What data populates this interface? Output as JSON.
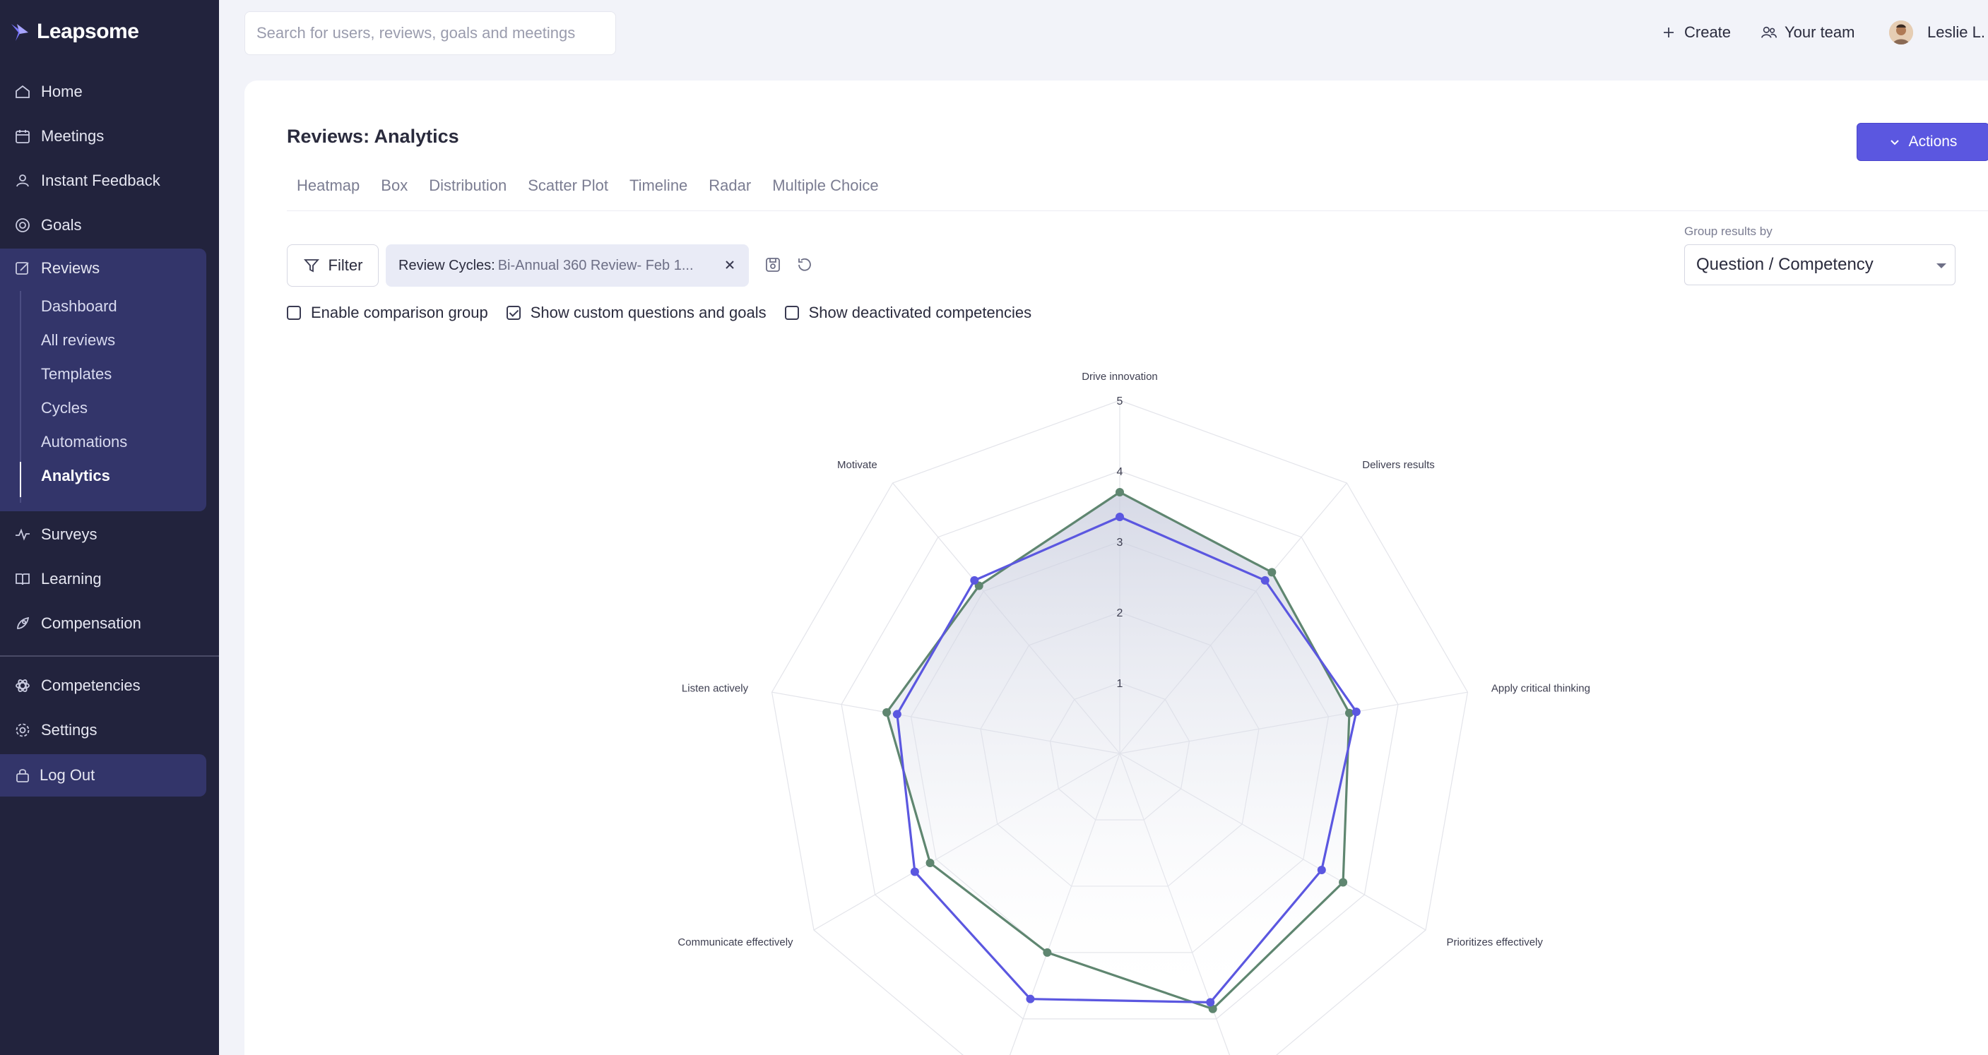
{
  "app": {
    "name": "Leapsome"
  },
  "sidebar": {
    "items": [
      {
        "label": "Home",
        "icon": "home-icon"
      },
      {
        "label": "Meetings",
        "icon": "calendar-icon"
      },
      {
        "label": "Instant Feedback",
        "icon": "feedback-icon"
      },
      {
        "label": "Goals",
        "icon": "target-icon"
      },
      {
        "label": "Reviews",
        "icon": "edit-icon"
      },
      {
        "label": "Surveys",
        "icon": "pulse-icon"
      },
      {
        "label": "Learning",
        "icon": "book-icon"
      },
      {
        "label": "Compensation",
        "icon": "rocket-icon"
      },
      {
        "label": "Competencies",
        "icon": "atom-icon"
      },
      {
        "label": "Settings",
        "icon": "gear-icon"
      }
    ],
    "reviews_sub": [
      "Dashboard",
      "All reviews",
      "Templates",
      "Cycles",
      "Automations",
      "Analytics"
    ],
    "active_sub": "Analytics",
    "logout": "Log Out"
  },
  "topbar": {
    "search_placeholder": "Search for users, reviews, goals and meetings",
    "create": "Create",
    "your_team": "Your team",
    "user": "Leslie L."
  },
  "page": {
    "title": "Reviews: Analytics",
    "actions": "Actions",
    "tabs": [
      "Heatmap",
      "Box",
      "Distribution",
      "Scatter Plot",
      "Timeline",
      "Radar",
      "Multiple Choice"
    ],
    "active_tab": "Radar",
    "filter": "Filter",
    "chip_key": "Review Cycles:",
    "chip_value": "Bi-Annual 360 Review- Feb 1...",
    "group_label": "Group results by",
    "group_value": "Question / Competency",
    "checkboxes": [
      {
        "label": "Enable comparison group",
        "checked": false
      },
      {
        "label": "Show custom questions and goals",
        "checked": true
      },
      {
        "label": "Show deactivated competencies",
        "checked": false
      }
    ]
  },
  "colors": {
    "accent": "#5b57e0",
    "sidebar": "#22233d",
    "series_a": "#5b57e0",
    "series_b": "#5f8670"
  },
  "chart_data": {
    "type": "radar",
    "axes": [
      "Drive innovation",
      "Delivers results",
      "Apply critical thinking",
      "Prioritizes effectively",
      "",
      "",
      "Communicate effectively",
      "Listen actively",
      "Motivate"
    ],
    "ticks": [
      "1",
      "2",
      "3",
      "4",
      "5"
    ],
    "range": [
      0,
      5
    ],
    "series": [
      {
        "values": [
          3.35,
          3.2,
          3.4,
          3.3,
          3.75,
          3.7,
          3.35,
          3.2,
          3.2
        ]
      },
      {
        "values": [
          3.7,
          3.35,
          3.3,
          3.65,
          3.85,
          3.0,
          3.1,
          3.35,
          3.1
        ]
      }
    ]
  }
}
